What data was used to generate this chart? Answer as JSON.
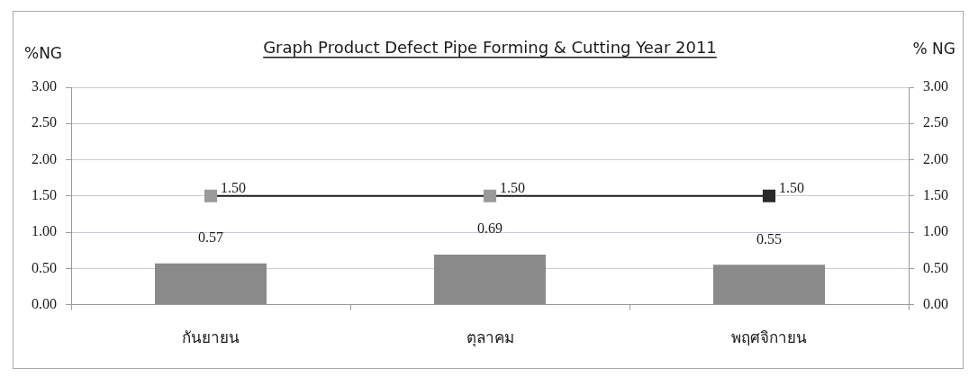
{
  "chart_data": {
    "type": "bar",
    "title": "Graph Product Defect Pipe Forming & Cutting Year 2011",
    "ylabel": "%NG",
    "y2label": "% NG",
    "categories": [
      "กันยายน",
      "ตุลาคม",
      "พฤศจิกายน"
    ],
    "series": [
      {
        "color": "#8a8a8a",
        "values": [
          0.57,
          0.69,
          0.55
        ],
        "value_labels": [
          "0.57",
          "0.69",
          "0.55"
        ]
      },
      {
        "type": "line",
        "color": "#1a1a1a",
        "colors": [
          "#9a9a9a",
          "#9a9a9a",
          "#2a2a2a"
        ],
        "marker": "square",
        "line_style": "solid",
        "values": [
          1.5,
          1.5,
          1.5
        ],
        "value_labels": [
          "1.50",
          "1.50",
          "1.50"
        ]
      }
    ],
    "ylim": [
      0,
      3
    ],
    "yticks": [
      {
        "value": 0,
        "label": "0.00"
      },
      {
        "value": 0.5,
        "label": "0.50"
      },
      {
        "value": 1,
        "label": "1.00"
      },
      {
        "value": 1.5,
        "label": "1.50"
      },
      {
        "value": 2,
        "label": "2.00"
      },
      {
        "value": 2.5,
        "label": "2.50"
      },
      {
        "value": 3,
        "label": "3.00"
      }
    ],
    "y2lim": [
      0,
      3
    ],
    "y2ticks": [
      {
        "value": 0,
        "label": "0.00"
      },
      {
        "value": 0.5,
        "label": "0.50"
      },
      {
        "value": 1,
        "label": "1.00"
      },
      {
        "value": 1.5,
        "label": "1.50"
      },
      {
        "value": 2,
        "label": "2.00"
      },
      {
        "value": 2.5,
        "label": "2.50"
      },
      {
        "value": 3,
        "label": "3.00"
      }
    ],
    "grid": "y",
    "legend": false
  }
}
